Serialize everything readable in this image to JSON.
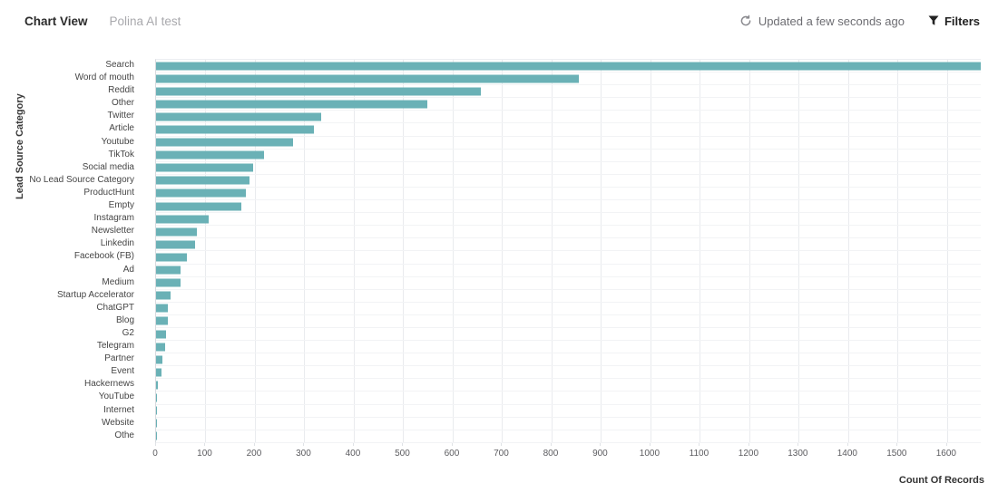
{
  "header": {
    "tabs": [
      {
        "label": "Chart View",
        "active": true
      },
      {
        "label": "Polina AI test",
        "active": false
      }
    ],
    "updated_text": "Updated a few seconds ago",
    "filters_label": "Filters",
    "icons": {
      "refresh": "refresh-icon",
      "filter": "filter-funnel-icon"
    }
  },
  "chart_data": {
    "type": "bar",
    "orientation": "horizontal",
    "title": "",
    "xlabel": "Count Of Records",
    "ylabel": "Lead Source Category",
    "categories": [
      "Search",
      "Word of mouth",
      "Reddit",
      "Other",
      "Twitter",
      "Article",
      "Youtube",
      "TikTok",
      "Social media",
      "No Lead Source Category",
      "ProductHunt",
      "Empty",
      "Instagram",
      "Newsletter",
      "Linkedin",
      "Facebook (FB)",
      "Ad",
      "Medium",
      "Startup Accelerator",
      "ChatGPT",
      "Blog",
      "G2",
      "Telegram",
      "Partner",
      "Event",
      "Hackernews",
      "YouTube",
      "Internet",
      "Website",
      "Othe"
    ],
    "values": [
      1670,
      857,
      657,
      549,
      335,
      319,
      277,
      218,
      197,
      190,
      182,
      173,
      106,
      82,
      79,
      62,
      50,
      49,
      29,
      24,
      23,
      21,
      19,
      12,
      11,
      4,
      2,
      1,
      1,
      1
    ],
    "x_ticks": [
      0,
      100,
      200,
      300,
      400,
      500,
      600,
      700,
      800,
      900,
      1000,
      1100,
      1200,
      1300,
      1400,
      1500,
      1600
    ],
    "xlim": [
      0,
      1670
    ],
    "grid": true,
    "legend": "none",
    "bar_color": "#6AB1B6"
  }
}
